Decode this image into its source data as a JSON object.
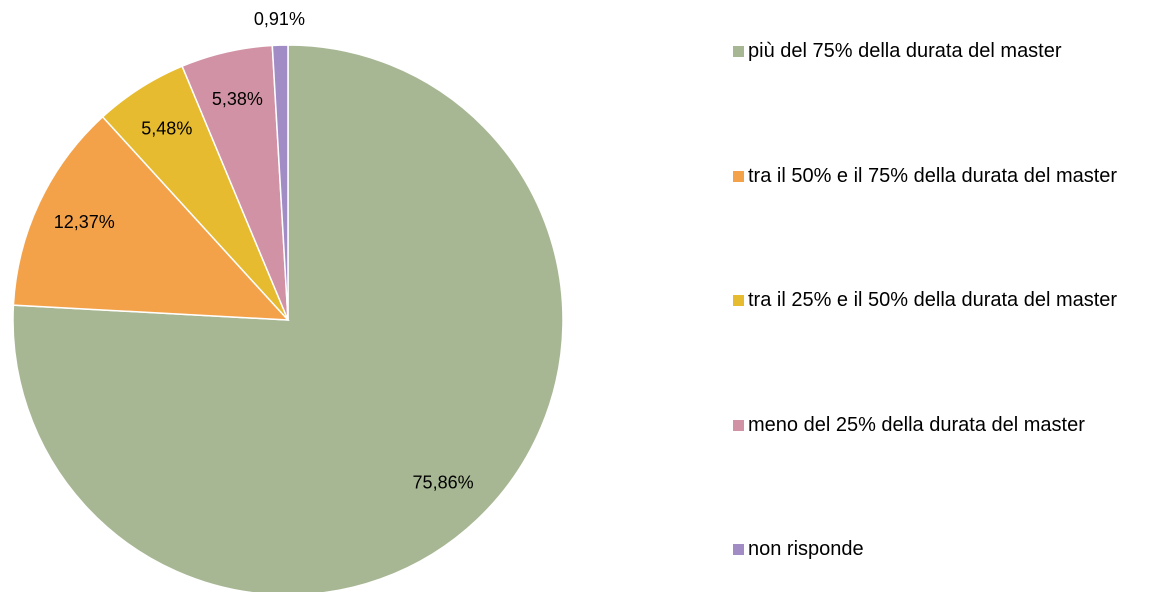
{
  "chart_data": {
    "type": "pie",
    "categories": [
      "più del 75% della durata del master",
      "tra il 50% e il 75% della durata del master",
      "tra il 25% e il 50% della durata del master",
      "meno del 25% della durata del master",
      "non risponde"
    ],
    "values": [
      75.86,
      12.37,
      5.48,
      5.38,
      0.91
    ],
    "value_labels": [
      "75,86%",
      "12,37%",
      "5,48%",
      "5,38%",
      "0,91%"
    ],
    "colors": [
      "#a7b794",
      "#f4a24a",
      "#e6bb2f",
      "#d192a5",
      "#a28cc6"
    ],
    "legend": "right"
  }
}
